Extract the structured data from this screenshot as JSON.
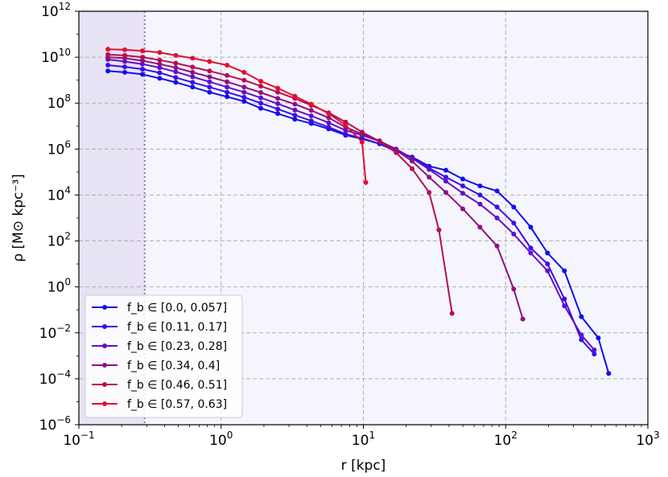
{
  "chart_data": {
    "type": "line",
    "xlabel": "r [kpc]",
    "ylabel": "ρ [M⊙ kpc⁻³]",
    "xscale": "log",
    "yscale": "log",
    "xlim": [
      0.1,
      1000
    ],
    "ylim": [
      1e-06,
      1000000000000.0
    ],
    "x_ticks": [
      {
        "value": 0.1,
        "base": "10",
        "exp": "−1"
      },
      {
        "value": 1,
        "base": "10",
        "exp": "0"
      },
      {
        "value": 10,
        "base": "10",
        "exp": "1"
      },
      {
        "value": 100,
        "base": "10",
        "exp": "2"
      },
      {
        "value": 1000,
        "base": "10",
        "exp": "3"
      }
    ],
    "y_ticks": [
      {
        "value": 1e-06,
        "base": "10",
        "exp": "−6"
      },
      {
        "value": 0.0001,
        "base": "10",
        "exp": "−4"
      },
      {
        "value": 0.01,
        "base": "10",
        "exp": "−2"
      },
      {
        "value": 1,
        "base": "10",
        "exp": "0"
      },
      {
        "value": 100,
        "base": "10",
        "exp": "2"
      },
      {
        "value": 10000.0,
        "base": "10",
        "exp": "4"
      },
      {
        "value": 1000000.0,
        "base": "10",
        "exp": "6"
      },
      {
        "value": 100000000.0,
        "base": "10",
        "exp": "8"
      },
      {
        "value": 10000000000.0,
        "base": "10",
        "exp": "10"
      },
      {
        "value": 1000000000000.0,
        "base": "10",
        "exp": "12"
      }
    ],
    "grid": true,
    "legend_position": "bottom-left",
    "shaded_region": {
      "x": [
        0.1,
        0.29
      ],
      "color": "#e8e2f5"
    },
    "vertical_line": {
      "x": 0.29,
      "color": "#a070c0",
      "style": "dotted"
    },
    "background_color": "#f5f5fd",
    "series": [
      {
        "name": "f_b ∈ [0.0, 0.057]",
        "color": "#1010e8",
        "x": [
          0.16,
          0.21,
          0.28,
          0.37,
          0.48,
          0.63,
          0.83,
          1.1,
          1.45,
          1.9,
          2.5,
          3.3,
          4.3,
          5.7,
          7.5,
          9.8,
          13,
          17,
          22,
          29,
          38,
          50,
          66,
          87,
          114,
          150,
          197,
          259,
          341,
          448,
          530
        ],
        "y": [
          2500000000.0,
          2200000000.0,
          1800000000.0,
          1200000000.0,
          800000000.0,
          500000000.0,
          300000000.0,
          190000000.0,
          120000000.0,
          60000000.0,
          35000000.0,
          20000000.0,
          13000000.0,
          7500000.0,
          4000000.0,
          2800000.0,
          1700000.0,
          800000.0,
          450000.0,
          180000.0,
          120000.0,
          50000.0,
          25000.0,
          15000.0,
          3000.0,
          400,
          30,
          5,
          0.05,
          0.006,
          0.00017
        ]
      },
      {
        "name": "f_b ∈ [0.11, 0.17]",
        "color": "#3a0ee8",
        "x": [
          0.16,
          0.21,
          0.28,
          0.37,
          0.48,
          0.63,
          0.83,
          1.1,
          1.45,
          1.9,
          2.5,
          3.3,
          4.3,
          5.7,
          7.5,
          9.8,
          13,
          17,
          22,
          29,
          38,
          50,
          66,
          87,
          114,
          150,
          197,
          259,
          341,
          420
        ],
        "y": [
          4500000000.0,
          3800000000.0,
          3000000000.0,
          2100000000.0,
          1300000000.0,
          800000000.0,
          500000000.0,
          300000000.0,
          180000000.0,
          100000000.0,
          55000000.0,
          30000000.0,
          17000000.0,
          9000000.0,
          4500000.0,
          3000000.0,
          1700000.0,
          800000.0,
          400000.0,
          150000.0,
          60000.0,
          25000.0,
          10000.0,
          3000.0,
          600,
          50,
          10,
          0.3,
          0.005,
          0.0012
        ]
      },
      {
        "name": "f_b ∈ [0.23, 0.28]",
        "color": "#6010c8",
        "x": [
          0.16,
          0.21,
          0.28,
          0.37,
          0.48,
          0.63,
          0.83,
          1.1,
          1.45,
          1.9,
          2.5,
          3.3,
          4.3,
          5.7,
          7.5,
          9.8,
          13,
          17,
          22,
          29,
          38,
          50,
          66,
          87,
          114,
          150,
          197,
          259,
          341,
          420
        ],
        "y": [
          8000000000.0,
          6500000000.0,
          5000000000.0,
          3500000000.0,
          2300000000.0,
          1400000000.0,
          850000000.0,
          500000000.0,
          300000000.0,
          170000000.0,
          95000000.0,
          50000000.0,
          28000000.0,
          14000000.0,
          6500000.0,
          4000000.0,
          2200000.0,
          1000000.0,
          400000.0,
          130000.0,
          40000.0,
          12000.0,
          4000.0,
          1000.0,
          200,
          30,
          5,
          0.15,
          0.008,
          0.0018
        ]
      },
      {
        "name": "f_b ∈ [0.34, 0.4]",
        "color": "#901080",
        "x": [
          0.16,
          0.21,
          0.28,
          0.37,
          0.48,
          0.63,
          0.83,
          1.1,
          1.45,
          1.9,
          2.5,
          3.3,
          4.3,
          5.7,
          7.5,
          9.8,
          13,
          17,
          22,
          29,
          38,
          50,
          66,
          87,
          114,
          132
        ],
        "y": [
          10000000000.0,
          9000000000.0,
          7000000000.0,
          5000000000.0,
          3500000000.0,
          2200000000.0,
          1400000000.0,
          850000000.0,
          500000000.0,
          290000000.0,
          160000000.0,
          90000000.0,
          48000000.0,
          23000000.0,
          9000000.0,
          4500000.0,
          2300000.0,
          900000.0,
          300000.0,
          60000.0,
          13000.0,
          2500.0,
          400,
          60,
          0.8,
          0.04
        ]
      },
      {
        "name": "f_b ∈ [0.46, 0.51]",
        "color": "#b80c50",
        "x": [
          0.16,
          0.21,
          0.28,
          0.37,
          0.48,
          0.63,
          0.83,
          1.1,
          1.45,
          1.9,
          2.5,
          3.3,
          4.3,
          5.7,
          7.5,
          9.8,
          13,
          17,
          22,
          29,
          34,
          42
        ],
        "y": [
          13000000000.0,
          12000000000.0,
          10000000000.0,
          7500000000.0,
          5500000000.0,
          3700000000.0,
          2500000000.0,
          1600000000.0,
          1000000000.0,
          550000000.0,
          300000000.0,
          160000000.0,
          80000000.0,
          38000000.0,
          15000000.0,
          5500000.0,
          2200000.0,
          700000.0,
          140000.0,
          13000.0,
          300,
          0.07
        ]
      },
      {
        "name": "f_b ∈ [0.57, 0.63]",
        "color": "#e01030",
        "x": [
          0.16,
          0.21,
          0.28,
          0.37,
          0.48,
          0.63,
          0.83,
          1.1,
          1.45,
          1.9,
          2.5,
          3.3,
          4.3,
          5.7,
          7.5,
          9.8,
          10.4
        ],
        "y": [
          22000000000.0,
          21000000000.0,
          19000000000.0,
          16000000000.0,
          12000000000.0,
          9000000000.0,
          6500000000.0,
          4500000000.0,
          2200000000.0,
          900000000.0,
          450000000.0,
          200000000.0,
          90000000.0,
          35000000.0,
          11000000.0,
          2000000.0,
          35000.0
        ]
      }
    ]
  }
}
